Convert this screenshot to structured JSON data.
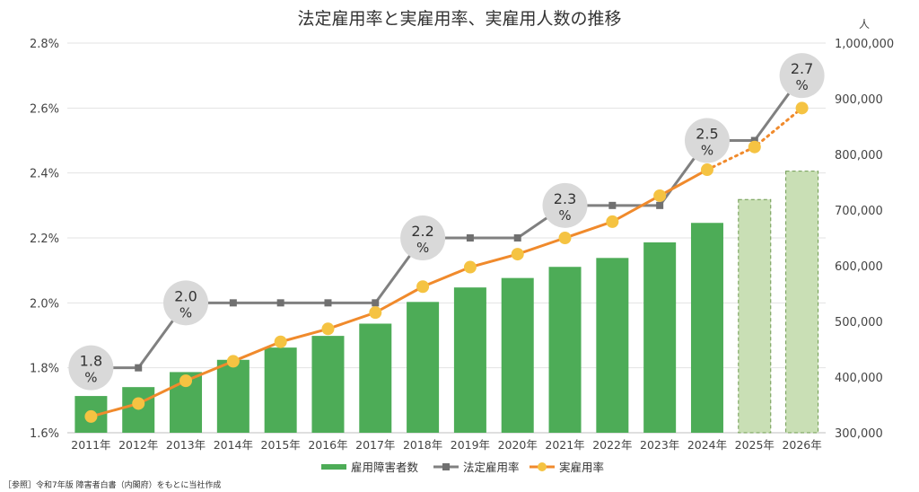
{
  "chart_data": {
    "type": "bar+line",
    "title": "法定雇用率と実雇用率、実雇用人数の推移",
    "categories": [
      "2011年",
      "2012年",
      "2013年",
      "2014年",
      "2015年",
      "2016年",
      "2017年",
      "2018年",
      "2019年",
      "2020年",
      "2021年",
      "2022年",
      "2023年",
      "2024年",
      "2025年",
      "2026年"
    ],
    "left_axis": {
      "min": 1.6,
      "max": 2.8,
      "ticks": [
        "1.6%",
        "1.8%",
        "2.0%",
        "2.2%",
        "2.4%",
        "2.6%",
        "2.8%"
      ]
    },
    "right_axis": {
      "unit": "人",
      "min": 300000,
      "max": 1000000,
      "ticks": [
        "300,000",
        "400,000",
        "500,000",
        "600,000",
        "700,000",
        "800,000",
        "900,000",
        "1,000,000"
      ]
    },
    "grid": true,
    "legend_position": "bottom",
    "series": [
      {
        "name": "雇用障害者数",
        "type": "bar",
        "axis": "right",
        "color": "#4dac57",
        "projected_color": "#c9dfb5",
        "values": [
          366000,
          382000,
          409000,
          431000,
          453000,
          474000,
          496000,
          535000,
          561000,
          578000,
          598000,
          614000,
          642000,
          677000,
          719000,
          770000
        ],
        "projected": [
          false,
          false,
          false,
          false,
          false,
          false,
          false,
          false,
          false,
          false,
          false,
          false,
          false,
          false,
          true,
          true
        ]
      },
      {
        "name": "法定雇用率",
        "type": "line",
        "axis": "left",
        "color": "#808080",
        "marker": "square",
        "values": [
          1.8,
          1.8,
          2.0,
          2.0,
          2.0,
          2.0,
          2.0,
          2.2,
          2.2,
          2.2,
          2.3,
          2.3,
          2.3,
          2.5,
          2.5,
          2.7
        ]
      },
      {
        "name": "実雇用率",
        "type": "line",
        "axis": "left",
        "color": "#f08a2c",
        "marker": "circle",
        "marker_color": "#f5c342",
        "values": [
          1.65,
          1.69,
          1.76,
          1.82,
          1.88,
          1.92,
          1.97,
          2.05,
          2.11,
          2.15,
          2.2,
          2.25,
          2.33,
          2.41,
          2.48,
          2.6
        ],
        "projected_from_index": 13
      }
    ],
    "annotations": [
      {
        "category": "2011年",
        "value": 1.8,
        "text": "1.8",
        "unit": "%"
      },
      {
        "category": "2013年",
        "value": 2.0,
        "text": "2.0",
        "unit": "%"
      },
      {
        "category": "2018年",
        "value": 2.2,
        "text": "2.2",
        "unit": "%"
      },
      {
        "category": "2021年",
        "value": 2.3,
        "text": "2.3",
        "unit": "%"
      },
      {
        "category": "2024年",
        "value": 2.5,
        "text": "2.5",
        "unit": "%"
      },
      {
        "category": "2026年",
        "value": 2.7,
        "text": "2.7",
        "unit": "%"
      }
    ]
  },
  "source_note": "［参照］令和7年版 障害者白書（内閣府）をもとに当社作成"
}
